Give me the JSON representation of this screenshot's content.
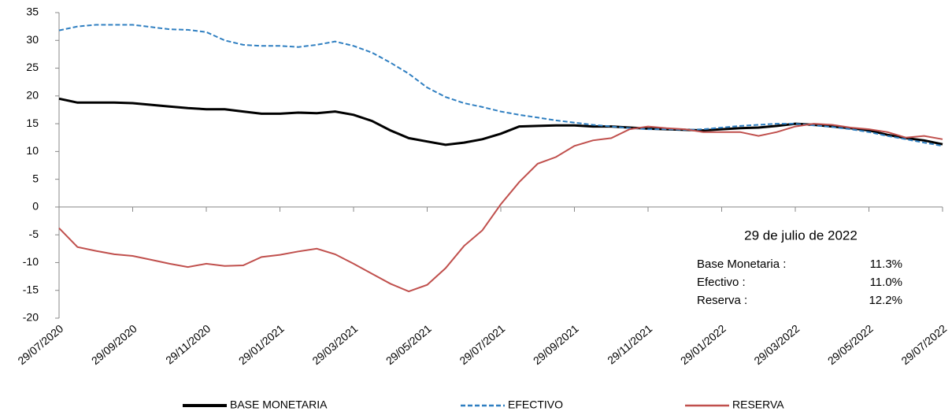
{
  "chart_data": {
    "type": "line",
    "categories": [
      "29/07/2020",
      null,
      null,
      null,
      "29/09/2020",
      null,
      null,
      null,
      "29/11/2020",
      null,
      null,
      null,
      "29/01/2021",
      null,
      null,
      null,
      "29/03/2021",
      null,
      null,
      null,
      "29/05/2021",
      null,
      null,
      null,
      "29/07/2021",
      null,
      null,
      null,
      "29/09/2021",
      null,
      null,
      null,
      "29/11/2021",
      null,
      null,
      null,
      "29/01/2022",
      null,
      null,
      null,
      "29/03/2022",
      null,
      null,
      null,
      "29/05/2022",
      null,
      null,
      null,
      "29/07/2022"
    ],
    "series": [
      {
        "name": "BASE MONETARIA",
        "color": "#000000",
        "line_style": "solid",
        "values": [
          19.5,
          18.8,
          18.8,
          18.8,
          18.7,
          18.4,
          18.1,
          17.8,
          17.6,
          17.6,
          17.2,
          16.8,
          16.8,
          17.0,
          16.9,
          17.2,
          16.6,
          15.5,
          13.8,
          12.4,
          11.8,
          11.2,
          11.6,
          12.2,
          13.2,
          14.5,
          14.6,
          14.7,
          14.7,
          14.5,
          14.5,
          14.3,
          14.1,
          14.0,
          13.9,
          13.8,
          14.0,
          14.2,
          14.3,
          14.6,
          15.0,
          14.8,
          14.5,
          14.2,
          13.8,
          13.0,
          12.4,
          12.0,
          11.3
        ]
      },
      {
        "name": "EFECTIVO",
        "color": "#2f7fc1",
        "line_style": "dashed",
        "values": [
          31.8,
          32.5,
          32.8,
          32.8,
          32.8,
          32.4,
          32.0,
          31.9,
          31.5,
          30.0,
          29.2,
          29.0,
          29.0,
          28.8,
          29.2,
          29.8,
          29.0,
          27.8,
          26.0,
          24.0,
          21.5,
          19.8,
          18.7,
          18.0,
          17.2,
          16.6,
          16.1,
          15.6,
          15.2,
          14.8,
          14.5,
          14.2,
          14.0,
          14.0,
          13.9,
          14.0,
          14.3,
          14.6,
          14.8,
          15.0,
          15.0,
          14.7,
          14.4,
          14.0,
          13.5,
          12.8,
          12.2,
          11.6,
          11.0
        ]
      },
      {
        "name": "RESERVA",
        "color": "#c0504d",
        "line_style": "solid",
        "values": [
          -3.8,
          -7.2,
          -7.9,
          -8.5,
          -8.8,
          -9.5,
          -10.2,
          -10.8,
          -10.2,
          -10.6,
          -10.5,
          -9.0,
          -8.6,
          -8.0,
          -7.5,
          -8.5,
          -10.2,
          -12.0,
          -13.8,
          -15.2,
          -14.0,
          -11.0,
          -7.0,
          -4.2,
          0.5,
          4.5,
          7.8,
          9.0,
          11.0,
          12.0,
          12.4,
          14.0,
          14.5,
          14.2,
          14.0,
          13.5,
          13.5,
          13.5,
          12.8,
          13.5,
          14.5,
          15.0,
          14.8,
          14.3,
          14.0,
          13.5,
          12.5,
          12.8,
          12.2
        ]
      }
    ],
    "ylim": [
      -20,
      35
    ],
    "yticks": [
      -20,
      -15,
      -10,
      -5,
      0,
      5,
      10,
      15,
      20,
      25,
      30,
      35
    ],
    "grid": false,
    "annotation": {
      "title": "29 de julio de 2022",
      "rows": [
        {
          "label": "Base Monetaria :",
          "value": "11.3%"
        },
        {
          "label": "Efectivo :",
          "value": "11.0%"
        },
        {
          "label": "Reserva :",
          "value": "12.2%"
        }
      ]
    },
    "legend": "bottom"
  }
}
